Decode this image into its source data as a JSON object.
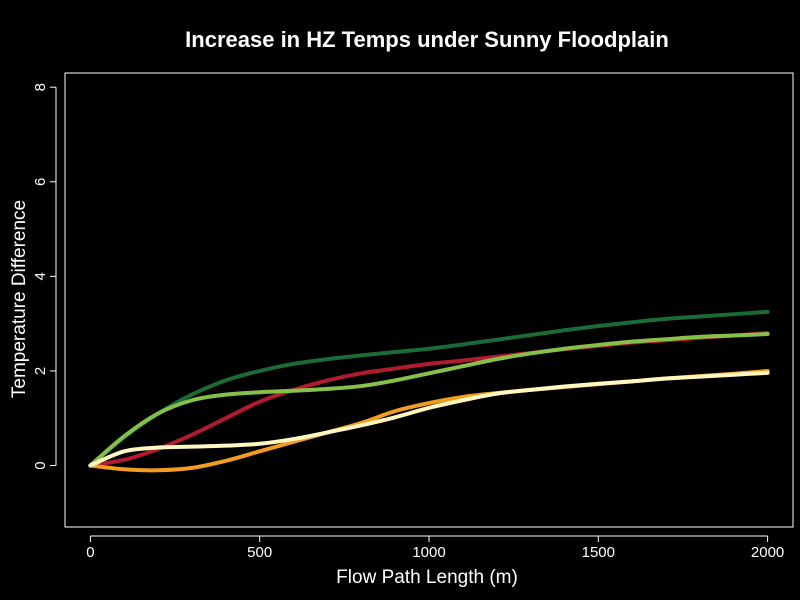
{
  "chart_data": {
    "type": "line",
    "title": "Increase in HZ Temps under Sunny Floodplain",
    "xlabel": "Flow Path Length (m)",
    "ylabel": "Temperature Difference",
    "xlim": [
      -75,
      2075
    ],
    "ylim": [
      -1.3,
      8.3
    ],
    "xticks": [
      0,
      500,
      1000,
      1500,
      2000
    ],
    "yticks": [
      0,
      2,
      4,
      6,
      8
    ],
    "grid": false,
    "legend": "none",
    "background": "#000000",
    "foreground": "#ffffff",
    "x": [
      0,
      100,
      200,
      300,
      400,
      500,
      600,
      700,
      800,
      900,
      1000,
      1100,
      1200,
      1300,
      1400,
      1500,
      1600,
      1700,
      1800,
      1900,
      2000
    ],
    "series": [
      {
        "color": "#1a6b35",
        "values": [
          0,
          0.6,
          1.1,
          1.5,
          1.8,
          2.0,
          2.15,
          2.25,
          2.33,
          2.4,
          2.47,
          2.56,
          2.66,
          2.76,
          2.86,
          2.95,
          3.03,
          3.1,
          3.15,
          3.2,
          3.25
        ]
      },
      {
        "color": "#b01c2e",
        "values": [
          0,
          0.12,
          0.35,
          0.65,
          1.0,
          1.35,
          1.6,
          1.8,
          1.95,
          2.05,
          2.15,
          2.22,
          2.3,
          2.38,
          2.46,
          2.53,
          2.6,
          2.65,
          2.7,
          2.75,
          2.8
        ]
      },
      {
        "color": "#86c04a",
        "values": [
          0,
          0.62,
          1.1,
          1.38,
          1.5,
          1.55,
          1.58,
          1.62,
          1.68,
          1.8,
          1.95,
          2.1,
          2.25,
          2.37,
          2.47,
          2.55,
          2.62,
          2.67,
          2.72,
          2.75,
          2.78
        ]
      },
      {
        "color": "#f39c20",
        "values": [
          0,
          -0.08,
          -0.1,
          -0.05,
          0.1,
          0.3,
          0.5,
          0.7,
          0.9,
          1.15,
          1.32,
          1.45,
          1.53,
          1.6,
          1.66,
          1.72,
          1.78,
          1.84,
          1.89,
          1.94,
          2.0
        ]
      },
      {
        "color": "#fff6c0",
        "values": [
          0,
          0.3,
          0.38,
          0.4,
          0.42,
          0.46,
          0.56,
          0.7,
          0.85,
          1.02,
          1.22,
          1.38,
          1.52,
          1.6,
          1.67,
          1.73,
          1.78,
          1.84,
          1.88,
          1.92,
          1.96
        ]
      }
    ]
  }
}
